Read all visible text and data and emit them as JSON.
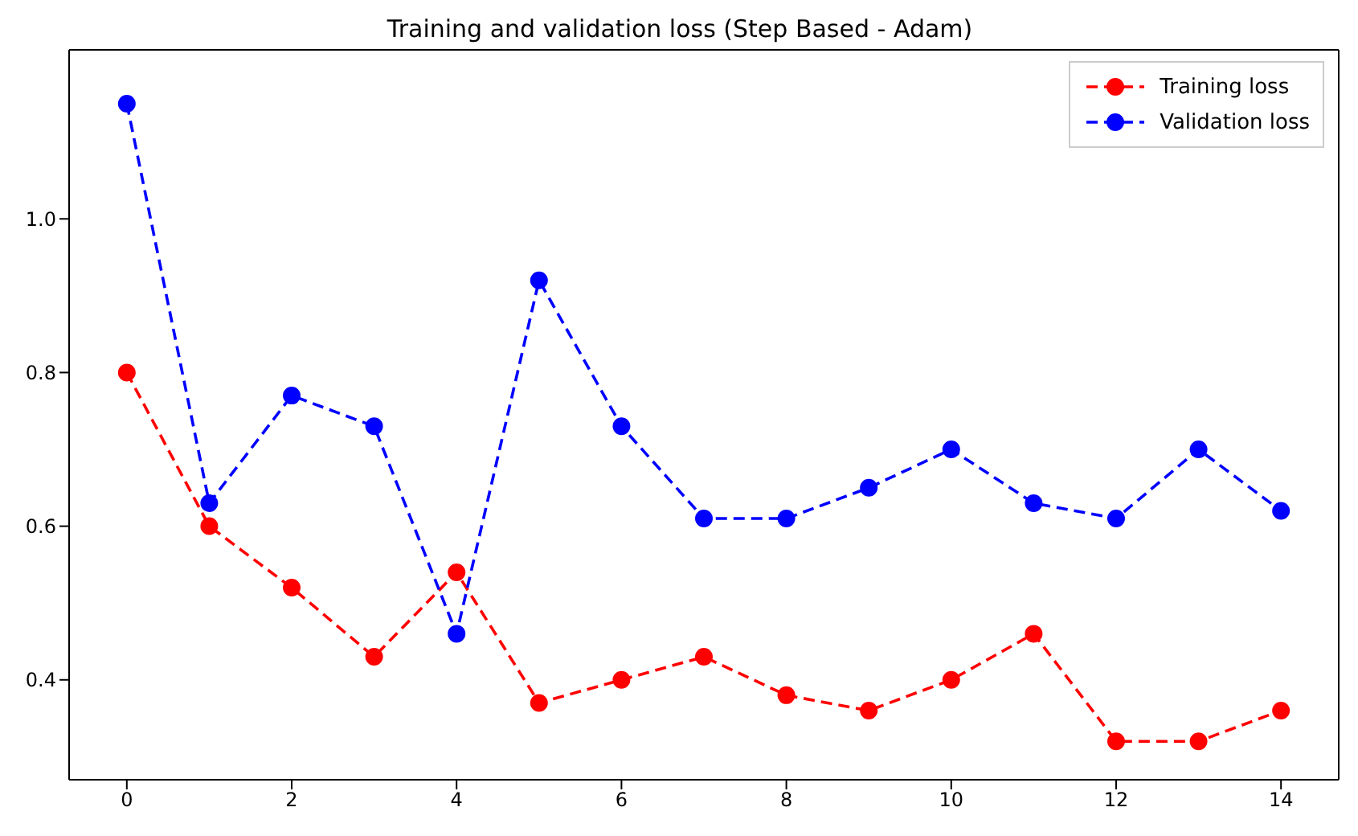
{
  "chart_data": {
    "type": "line",
    "title": "Training and validation loss (Step Based - Adam)",
    "x": [
      0,
      1,
      2,
      3,
      4,
      5,
      6,
      7,
      8,
      9,
      10,
      11,
      12,
      13,
      14
    ],
    "series": [
      {
        "name": "Training loss",
        "color": "#ff0000",
        "values": [
          0.8,
          0.6,
          0.52,
          0.43,
          0.54,
          0.37,
          0.4,
          0.43,
          0.38,
          0.36,
          0.4,
          0.46,
          0.32,
          0.32,
          0.36
        ]
      },
      {
        "name": "Validation loss",
        "color": "#0000ff",
        "values": [
          1.15,
          0.63,
          0.77,
          0.73,
          0.46,
          0.92,
          0.73,
          0.61,
          0.61,
          0.65,
          0.7,
          0.63,
          0.61,
          0.7,
          0.62
        ]
      }
    ],
    "xlim": [
      -0.7,
      14.7
    ],
    "xticks": [
      0,
      2,
      4,
      6,
      8,
      10,
      12,
      14
    ],
    "ylim": [
      0.27,
      1.22
    ],
    "yticks": [
      0.4,
      0.6,
      0.8,
      {
        "value": 1,
        "label": "1.0"
      }
    ],
    "grid": false,
    "legend": "top right",
    "marker": "circle",
    "line_style": "dashed"
  }
}
